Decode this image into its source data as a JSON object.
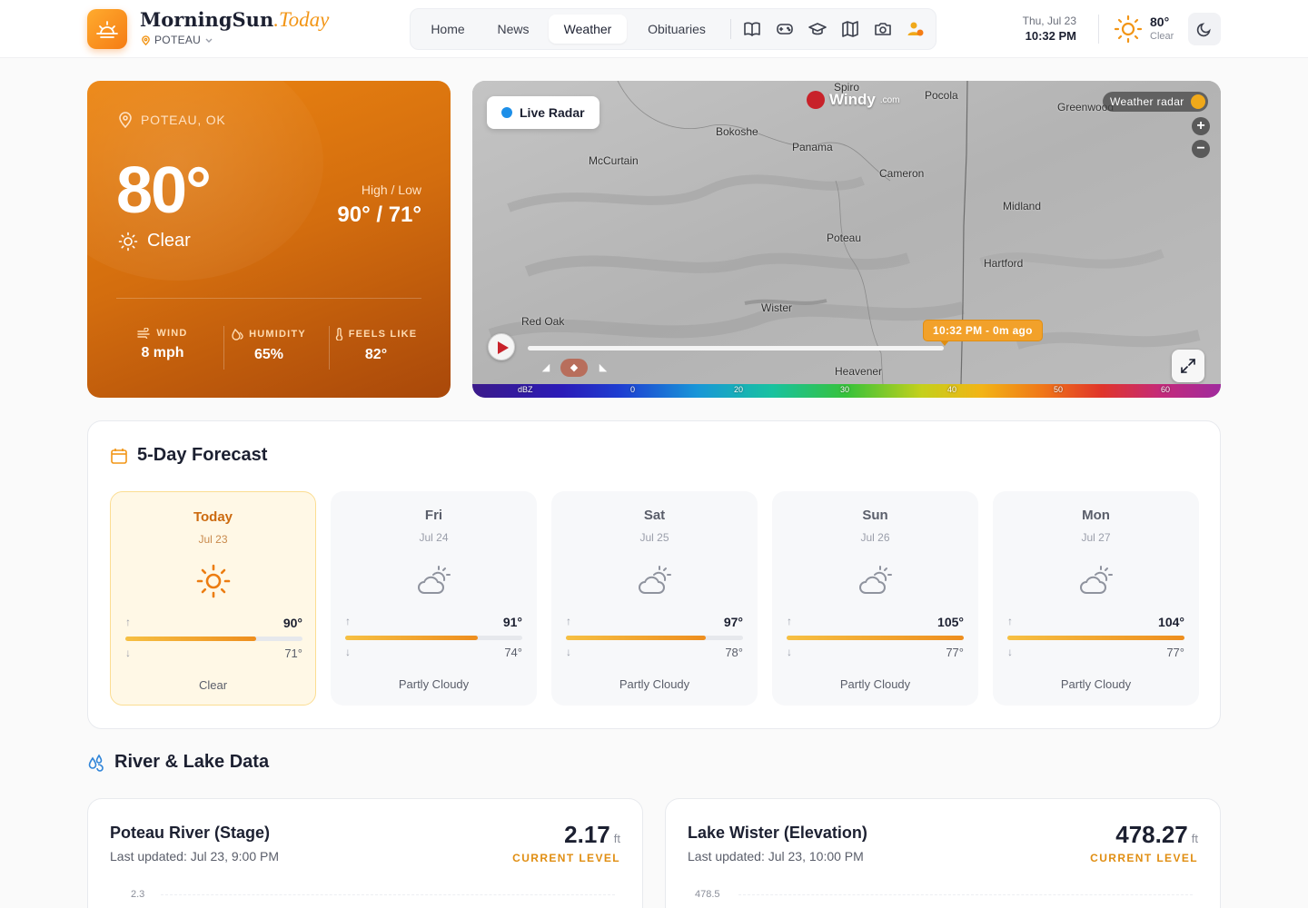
{
  "header": {
    "brand_main": "MorningSun",
    "brand_suffix": ".Today",
    "location": "POTEAU",
    "nav": [
      "Home",
      "News",
      "Weather",
      "Obituaries"
    ],
    "active_nav": "Weather",
    "nav_icons": [
      "book-icon",
      "gamepad-icon",
      "graduation-cap-icon",
      "map-icon",
      "camera-icon",
      "user-alert-icon"
    ],
    "date": "Thu, Jul 23",
    "time": "10:32 PM",
    "temp": "80°",
    "condition": "Clear"
  },
  "current": {
    "location": "POTEAU, OK",
    "temp": "80°",
    "condition": "Clear",
    "high_low_label": "High / Low",
    "high_low": "90° / 71°",
    "stats": [
      {
        "label": "WIND",
        "value": "8 mph",
        "icon": "wind-icon"
      },
      {
        "label": "HUMIDITY",
        "value": "65%",
        "icon": "droplet-icon"
      },
      {
        "label": "FEELS LIKE",
        "value": "82°",
        "icon": "thermometer-icon"
      }
    ]
  },
  "radar": {
    "live_label": "Live Radar",
    "provider": "Windy",
    "provider_suffix": ".com",
    "layer_label": "Weather radar",
    "timestamp": "10:32 PM - 0m ago",
    "towns": [
      "Spiro",
      "Pocola",
      "Greenwood",
      "Bokoshe",
      "Panama",
      "McCurtain",
      "Cameron",
      "Midland",
      "Poteau",
      "Hartford",
      "Red Oak",
      "Wister",
      "Heavener"
    ],
    "scale_unit": "dBZ",
    "scale_ticks": [
      "0",
      "20",
      "30",
      "40",
      "50",
      "60"
    ]
  },
  "forecast": {
    "title": "5-Day Forecast",
    "days": [
      {
        "name": "Today",
        "date": "Jul 23",
        "high": "90°",
        "low": "71°",
        "high_val": 90,
        "condition": "Clear",
        "icon": "sun-icon"
      },
      {
        "name": "Fri",
        "date": "Jul 24",
        "high": "91°",
        "low": "74°",
        "high_val": 91,
        "condition": "Partly Cloudy",
        "icon": "partly-cloudy-icon"
      },
      {
        "name": "Sat",
        "date": "Jul 25",
        "high": "97°",
        "low": "78°",
        "high_val": 97,
        "condition": "Partly Cloudy",
        "icon": "partly-cloudy-icon"
      },
      {
        "name": "Sun",
        "date": "Jul 26",
        "high": "105°",
        "low": "77°",
        "high_val": 105,
        "condition": "Partly Cloudy",
        "icon": "partly-cloudy-icon"
      },
      {
        "name": "Mon",
        "date": "Jul 27",
        "high": "104°",
        "low": "77°",
        "high_val": 104,
        "condition": "Partly Cloudy",
        "icon": "partly-cloudy-icon"
      }
    ]
  },
  "river": {
    "title": "River & Lake Data",
    "cards": [
      {
        "title": "Poteau River (Stage)",
        "updated": "Last updated: Jul 23, 9:00 PM",
        "level": "2.17",
        "unit": "ft",
        "caption": "CURRENT LEVEL",
        "axis_tick": "2.3"
      },
      {
        "title": "Lake Wister (Elevation)",
        "updated": "Last updated: Jul 23, 10:00 PM",
        "level": "478.27",
        "unit": "ft",
        "caption": "CURRENT LEVEL",
        "axis_tick": "478.5"
      }
    ]
  }
}
